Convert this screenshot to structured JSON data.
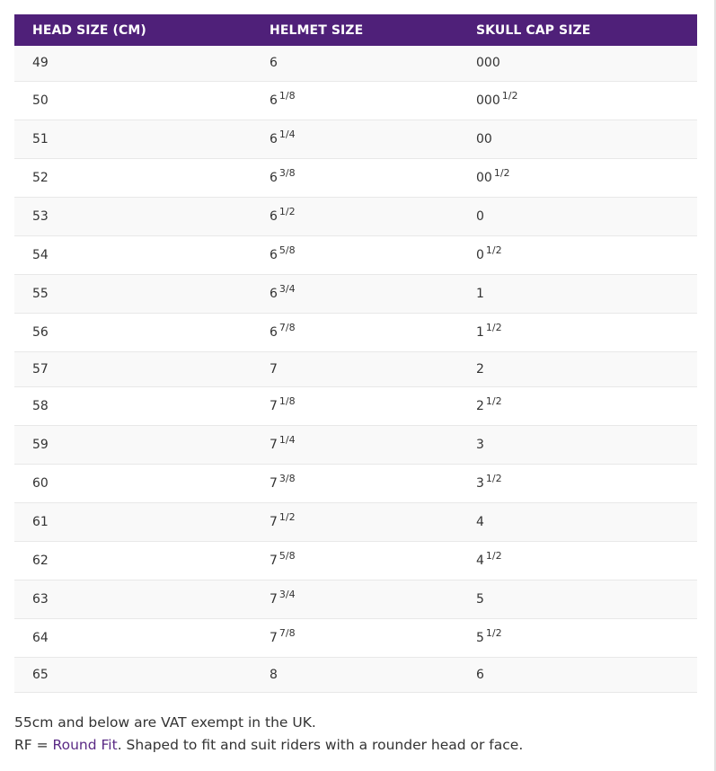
{
  "table": {
    "headers": [
      "HEAD SIZE (CM)",
      "HELMET SIZE",
      "SKULL CAP SIZE"
    ],
    "rows": [
      {
        "head": "49",
        "helmet": "6",
        "helmet_frac": "",
        "skull": "000",
        "skull_frac": ""
      },
      {
        "head": "50",
        "helmet": "6",
        "helmet_frac": "1/8",
        "skull": "000",
        "skull_frac": "1/2"
      },
      {
        "head": "51",
        "helmet": "6",
        "helmet_frac": "1/4",
        "skull": "00",
        "skull_frac": ""
      },
      {
        "head": "52",
        "helmet": "6",
        "helmet_frac": "3/8",
        "skull": "00",
        "skull_frac": "1/2"
      },
      {
        "head": "53",
        "helmet": "6",
        "helmet_frac": "1/2",
        "skull": "0",
        "skull_frac": ""
      },
      {
        "head": "54",
        "helmet": "6",
        "helmet_frac": "5/8",
        "skull": "0",
        "skull_frac": "1/2"
      },
      {
        "head": "55",
        "helmet": "6",
        "helmet_frac": "3/4",
        "skull": "1",
        "skull_frac": ""
      },
      {
        "head": "56",
        "helmet": "6",
        "helmet_frac": "7/8",
        "skull": "1",
        "skull_frac": "1/2"
      },
      {
        "head": "57",
        "helmet": "7",
        "helmet_frac": "",
        "skull": "2",
        "skull_frac": ""
      },
      {
        "head": "58",
        "helmet": "7",
        "helmet_frac": "1/8",
        "skull": "2",
        "skull_frac": "1/2"
      },
      {
        "head": "59",
        "helmet": "7",
        "helmet_frac": "1/4",
        "skull": "3",
        "skull_frac": ""
      },
      {
        "head": "60",
        "helmet": "7",
        "helmet_frac": "3/8",
        "skull": "3",
        "skull_frac": "1/2"
      },
      {
        "head": "61",
        "helmet": "7",
        "helmet_frac": "1/2",
        "skull": "4",
        "skull_frac": ""
      },
      {
        "head": "62",
        "helmet": "7",
        "helmet_frac": "5/8",
        "skull": "4",
        "skull_frac": "1/2"
      },
      {
        "head": "63",
        "helmet": "7",
        "helmet_frac": "3/4",
        "skull": "5",
        "skull_frac": ""
      },
      {
        "head": "64",
        "helmet": "7",
        "helmet_frac": "7/8",
        "skull": "5",
        "skull_frac": "1/2"
      },
      {
        "head": "65",
        "helmet": "8",
        "helmet_frac": "",
        "skull": "6",
        "skull_frac": ""
      }
    ]
  },
  "notes": {
    "vat": "55cm and below are VAT exempt in the UK.",
    "rf_prefix": "RF = ",
    "rf_link": "Round Fit",
    "rf_suffix": ". Shaped to fit and suit riders with a rounder head or face."
  },
  "colors": {
    "header_bg": "#4f2079",
    "header_text": "#ffffff",
    "link": "#5a2a85"
  }
}
